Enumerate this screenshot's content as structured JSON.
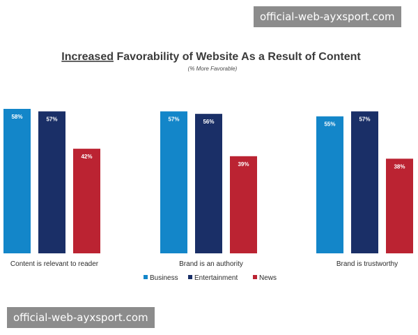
{
  "chart_data": {
    "type": "bar",
    "title_underlined": "Increased",
    "title_rest": " Favorability of Website As a Result of Content",
    "subtitle": "(% More Favorable)",
    "categories": [
      "Content is relevant to reader",
      "Brand is an authority",
      "Brand is trustworthy"
    ],
    "series": [
      {
        "name": "Business",
        "values": [
          58,
          57,
          55
        ],
        "color": "#1386c9"
      },
      {
        "name": "Entertainment",
        "values": [
          57,
          56,
          57
        ],
        "color": "#1a2f67"
      },
      {
        "name": "News",
        "values": [
          42,
          39,
          38
        ],
        "color": "#bb2332"
      }
    ],
    "value_suffix": "%",
    "ylim": [
      0,
      58
    ],
    "grid": false,
    "legend": "bottom-center"
  },
  "watermark": {
    "top": "official-web-ayxsport.com",
    "bottom": "official-web-ayxsport.com"
  }
}
